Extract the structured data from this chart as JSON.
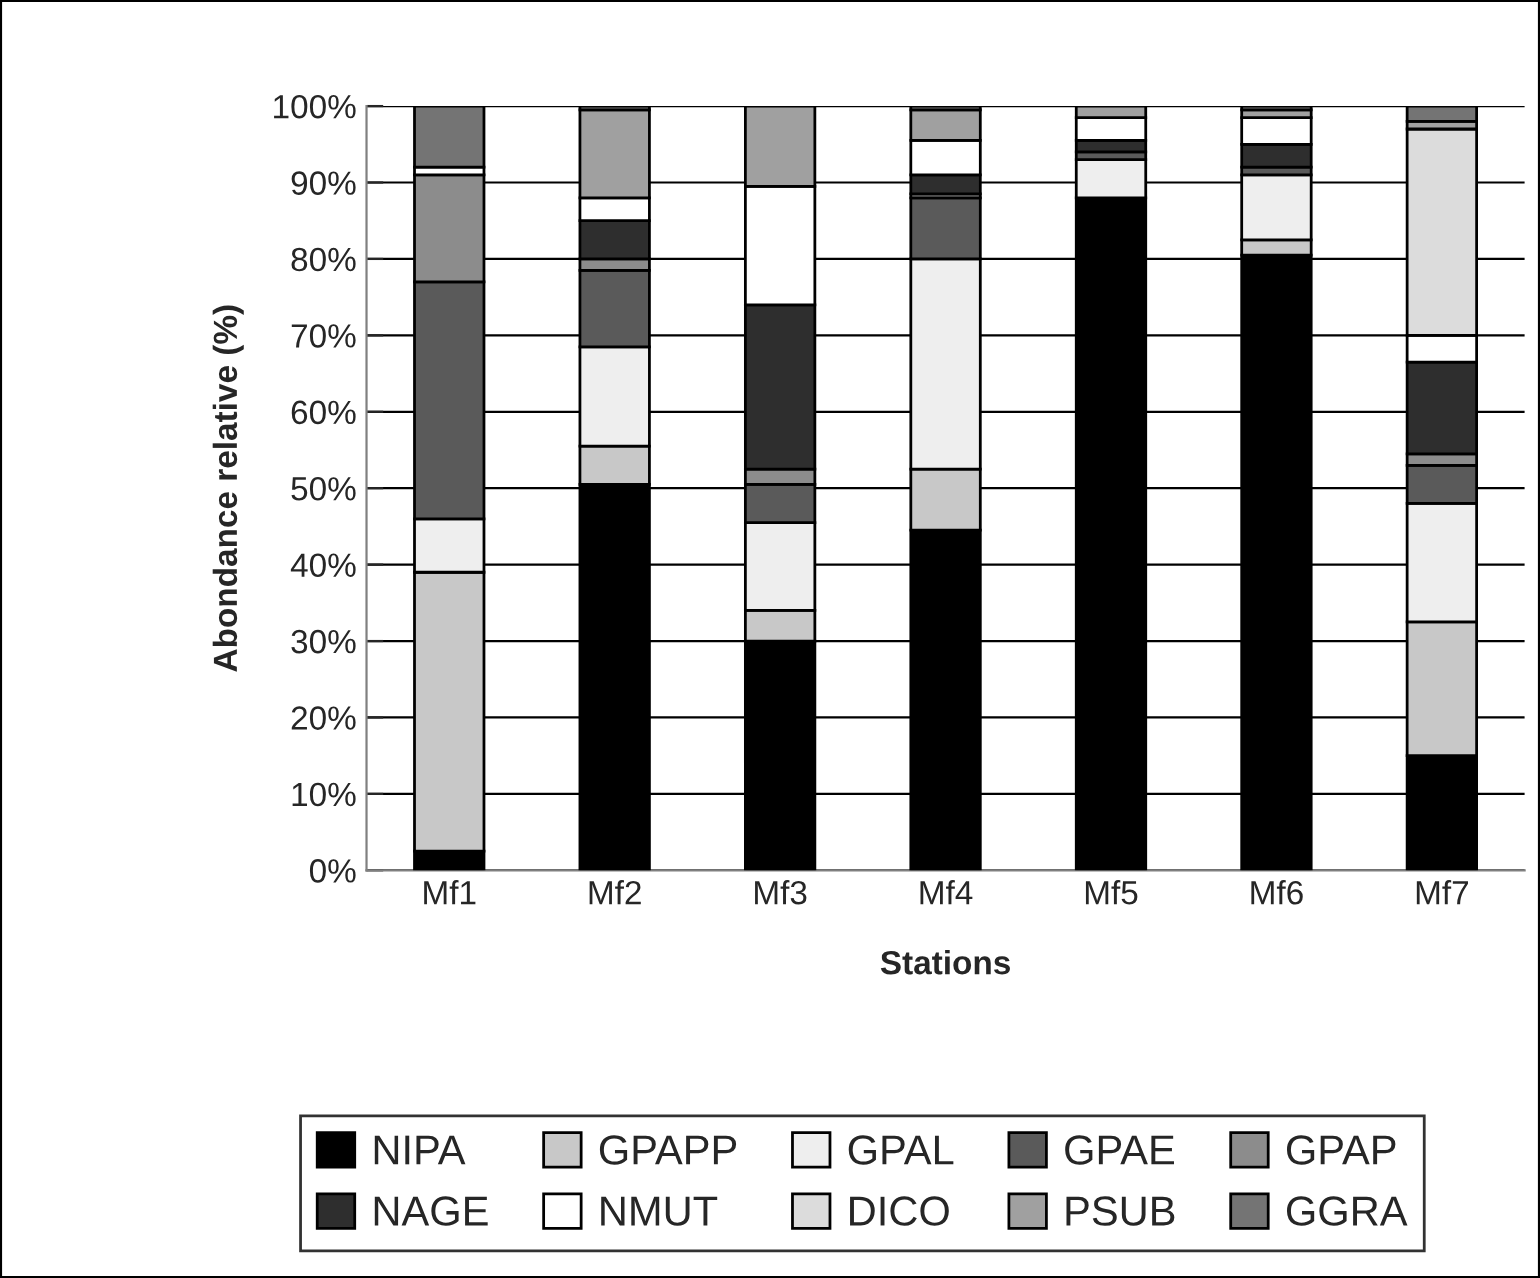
{
  "chart_data": {
    "type": "bar",
    "stacked": true,
    "xlabel": "Stations",
    "ylabel": "Abondance relative (%)",
    "categories": [
      "Mf1",
      "Mf2",
      "Mf3",
      "Mf4",
      "Mf5",
      "Mf6",
      "Mf7"
    ],
    "series": [
      {
        "name": "NIPA",
        "color": "#000000",
        "values": [
          2.5,
          50.5,
          30,
          44.5,
          88,
          80.5,
          15
        ]
      },
      {
        "name": "GPAPP",
        "color": "#c8c8c8",
        "values": [
          36.5,
          5,
          4,
          8,
          0,
          2,
          17.5
        ]
      },
      {
        "name": "GPAL",
        "color": "#eeeeee",
        "values": [
          7,
          13,
          11.5,
          27.5,
          5,
          8.5,
          15.5
        ]
      },
      {
        "name": "GPAE",
        "color": "#5a5a5a",
        "values": [
          31,
          10,
          5,
          8,
          1,
          1,
          5
        ]
      },
      {
        "name": "GPAP",
        "color": "#8c8c8c",
        "values": [
          14,
          1.5,
          2,
          0.5,
          0,
          0,
          1.5
        ]
      },
      {
        "name": "NAGE",
        "color": "#2e2e2e",
        "values": [
          0,
          5,
          21.5,
          2.5,
          1.5,
          3,
          12
        ]
      },
      {
        "name": "NMUT",
        "color": "#ffffff",
        "values": [
          1,
          3,
          15.5,
          4.5,
          3,
          3.5,
          3.5
        ]
      },
      {
        "name": "DICO",
        "color": "#dcdcdc",
        "values": [
          0,
          0,
          0,
          0,
          0,
          0,
          27
        ]
      },
      {
        "name": "PSUB",
        "color": "#a0a0a0",
        "values": [
          0,
          11.5,
          10.5,
          4,
          1.5,
          1,
          1
        ]
      },
      {
        "name": "GGRA",
        "color": "#747474",
        "values": [
          8,
          0.5,
          0,
          0.5,
          0,
          0.5,
          2
        ]
      }
    ],
    "ylim": [
      0,
      100
    ],
    "yticks": [
      {
        "value": 0,
        "label": "0%"
      },
      {
        "value": 10,
        "label": "10%"
      },
      {
        "value": 20,
        "label": "20%"
      },
      {
        "value": 30,
        "label": "30%"
      },
      {
        "value": 40,
        "label": "40%"
      },
      {
        "value": 50,
        "label": "50%"
      },
      {
        "value": 60,
        "label": "60%"
      },
      {
        "value": 70,
        "label": "70%"
      },
      {
        "value": 80,
        "label": "80%"
      },
      {
        "value": 90,
        "label": "90%"
      },
      {
        "value": 100,
        "label": "100%"
      }
    ],
    "grid": "y",
    "legend": "bottom"
  }
}
